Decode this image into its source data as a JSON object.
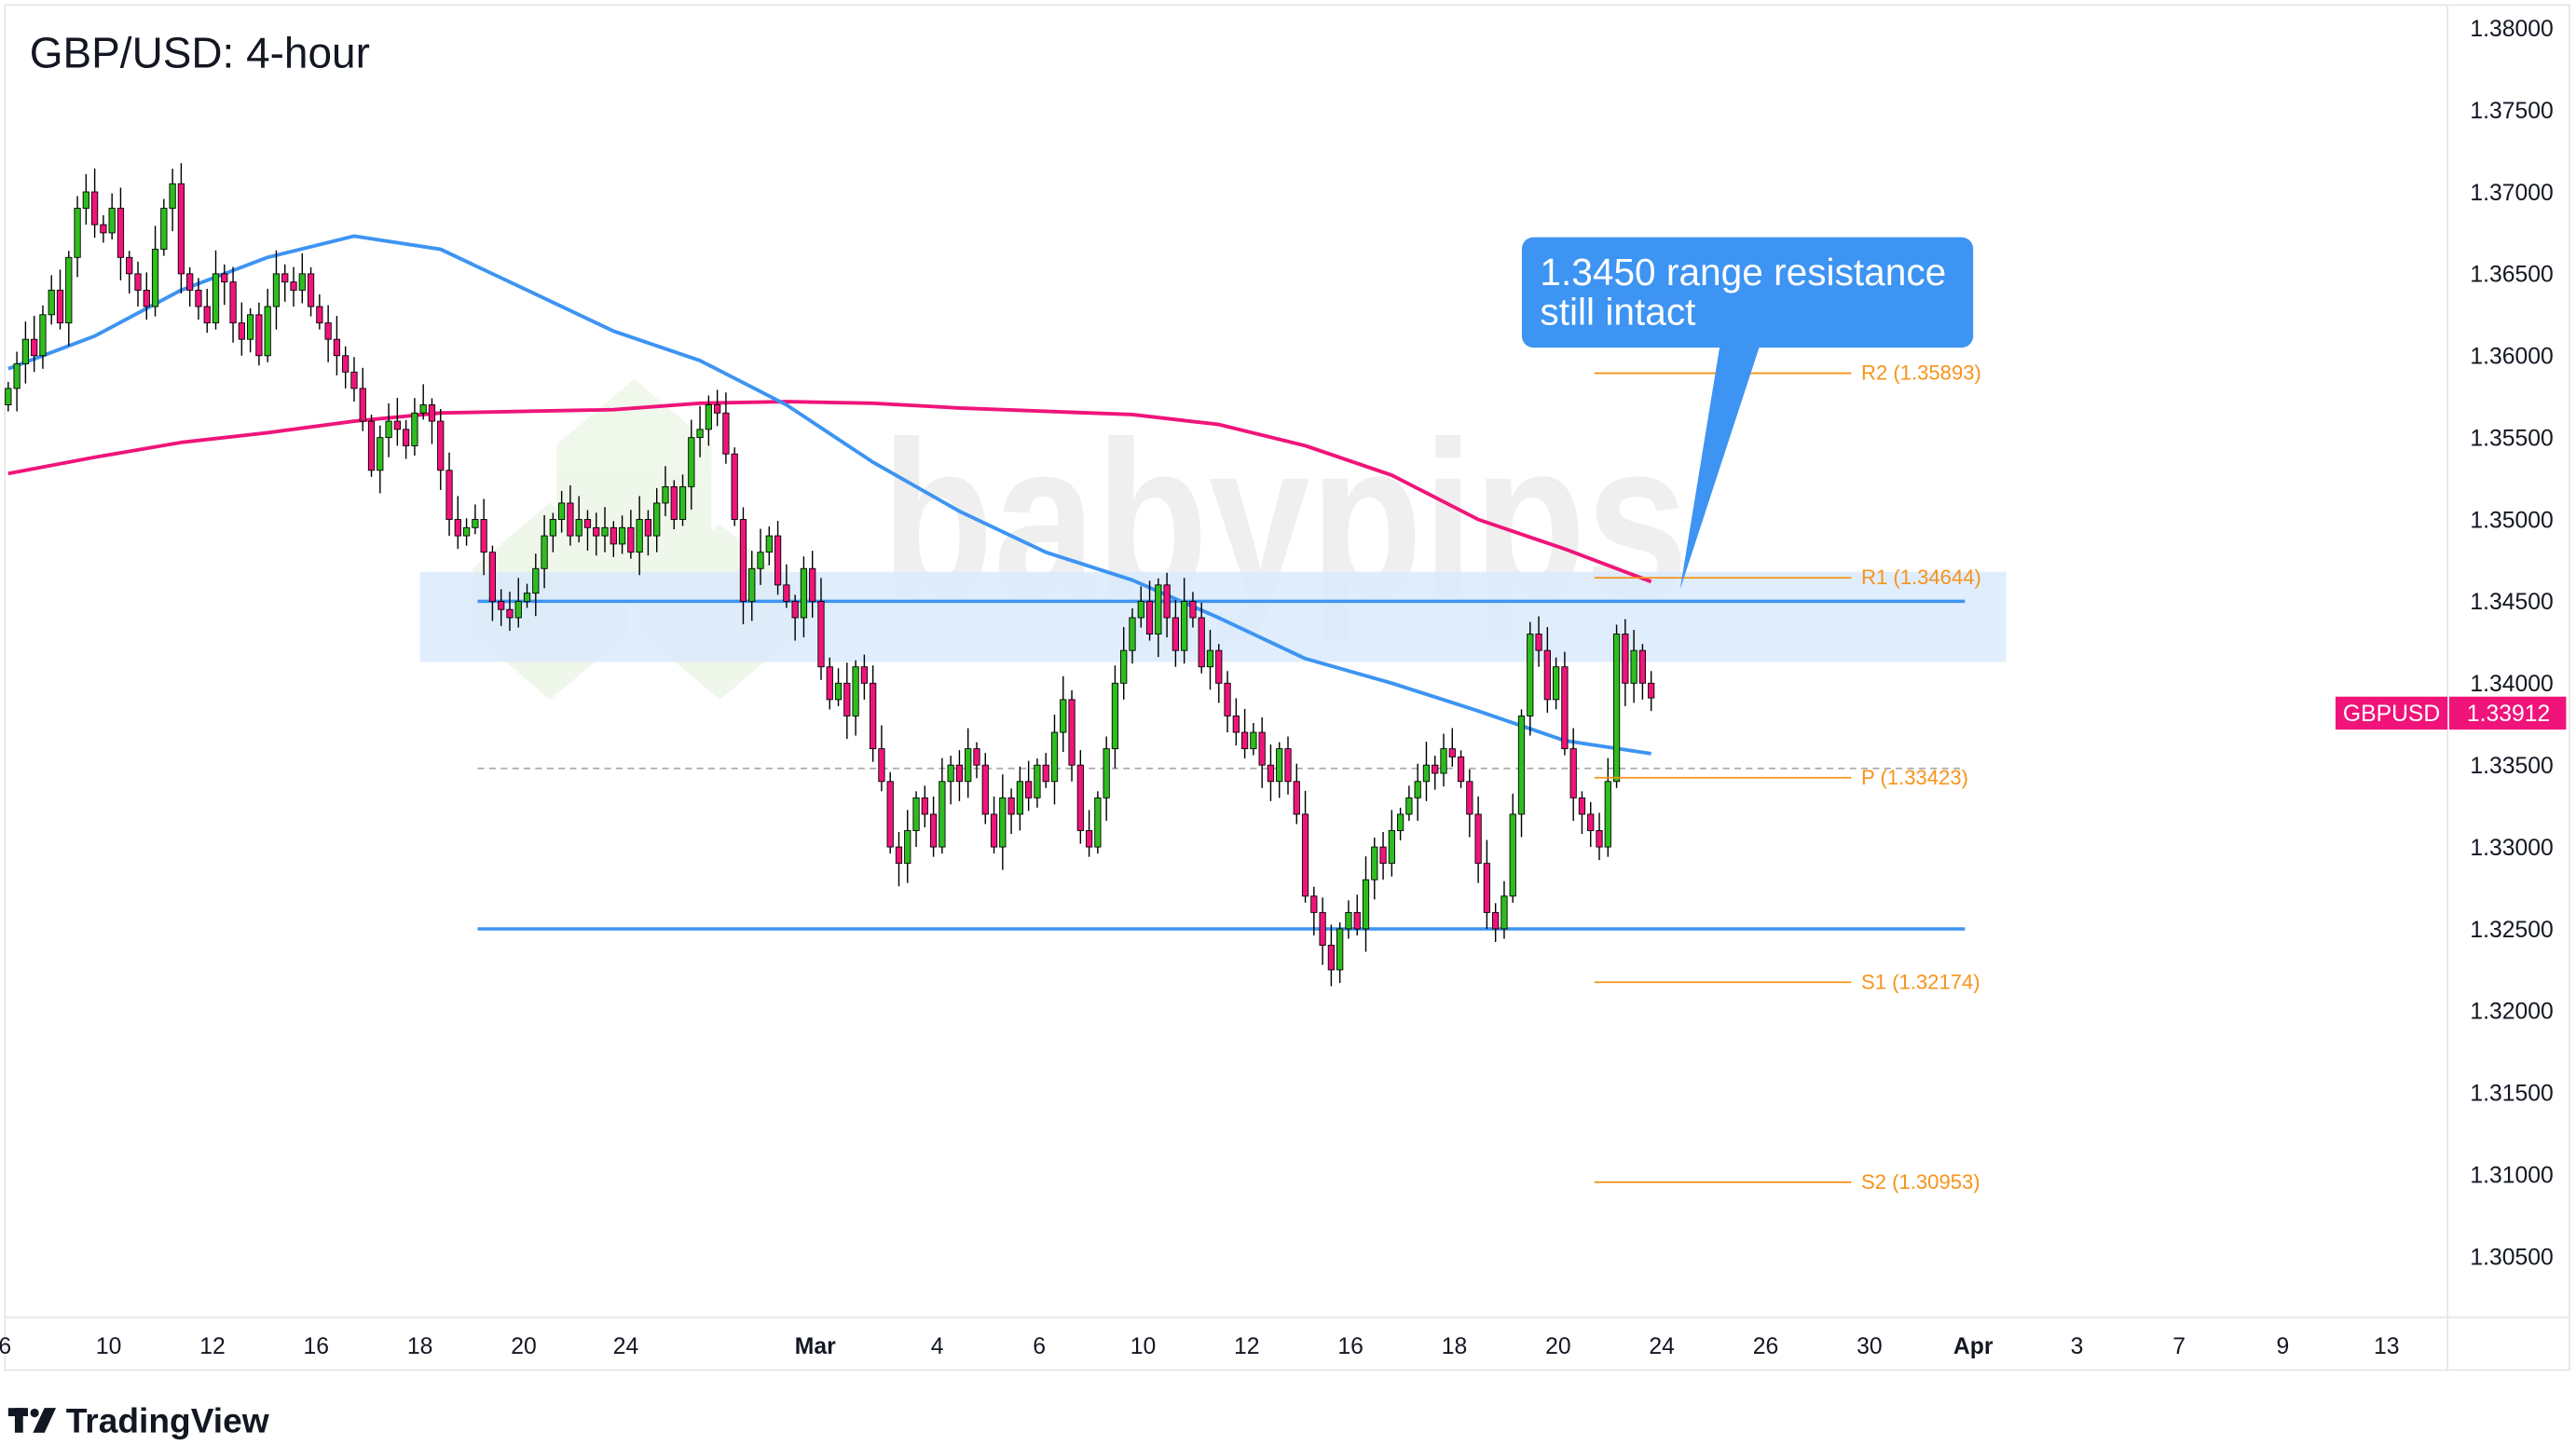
{
  "title": "GBP/USD: 4-hour",
  "brand": "TradingView",
  "watermark": "babypips",
  "colors": {
    "up": "#2ebd1e",
    "down": "#f0147a",
    "ma_fast": "#3d94f2",
    "ma_slow": "#f0147a",
    "pivot": "#f7931a",
    "zone": "#dbeafc",
    "callout": "#3d94f2"
  },
  "price_label": {
    "symbol": "GBPUSD",
    "value": "1.33912"
  },
  "annotation": {
    "line1": "1.3450 range resistance",
    "line2": "still intact"
  },
  "chart_data": {
    "type": "candlestick",
    "ylim": [
      1.3005,
      1.3815
    ],
    "y_ticks": [
      "1.38000",
      "1.37500",
      "1.37000",
      "1.36500",
      "1.36000",
      "1.35500",
      "1.35000",
      "1.34500",
      "1.34000",
      "1.33500",
      "1.33000",
      "1.32500",
      "1.32000",
      "1.31500",
      "1.31000",
      "1.30500"
    ],
    "x_ticks": [
      "6",
      "10",
      "12",
      "16",
      "18",
      "20",
      "24",
      "Mar",
      "4",
      "6",
      "10",
      "12",
      "16",
      "18",
      "20",
      "24",
      "26",
      "30",
      "Apr",
      "3",
      "7",
      "9",
      "13"
    ],
    "closes": [
      1.358,
      1.3595,
      1.361,
      1.36,
      1.3625,
      1.364,
      1.362,
      1.366,
      1.369,
      1.37,
      1.368,
      1.3675,
      1.369,
      1.366,
      1.365,
      1.364,
      1.363,
      1.3665,
      1.369,
      1.3705,
      1.365,
      1.364,
      1.363,
      1.362,
      1.365,
      1.3645,
      1.362,
      1.361,
      1.3625,
      1.36,
      1.363,
      1.365,
      1.3645,
      1.364,
      1.365,
      1.363,
      1.362,
      1.361,
      1.36,
      1.359,
      1.358,
      1.356,
      1.353,
      1.355,
      1.356,
      1.3555,
      1.3545,
      1.3565,
      1.357,
      1.356,
      1.353,
      1.35,
      1.349,
      1.3495,
      1.35,
      1.348,
      1.345,
      1.3445,
      1.344,
      1.345,
      1.3455,
      1.347,
      1.349,
      1.35,
      1.351,
      1.349,
      1.35,
      1.3495,
      1.349,
      1.3495,
      1.3485,
      1.3495,
      1.348,
      1.35,
      1.349,
      1.351,
      1.352,
      1.35,
      1.352,
      1.355,
      1.3555,
      1.357,
      1.3565,
      1.354,
      1.35,
      1.345,
      1.347,
      1.348,
      1.349,
      1.346,
      1.345,
      1.344,
      1.347,
      1.345,
      1.341,
      1.339,
      1.34,
      1.338,
      1.341,
      1.34,
      1.336,
      1.334,
      1.33,
      1.329,
      1.331,
      1.333,
      1.332,
      1.33,
      1.334,
      1.335,
      1.334,
      1.336,
      1.335,
      1.332,
      1.33,
      1.333,
      1.332,
      1.334,
      1.333,
      1.335,
      1.334,
      1.337,
      1.339,
      1.335,
      1.331,
      1.33,
      1.333,
      1.336,
      1.34,
      1.342,
      1.344,
      1.345,
      1.343,
      1.346,
      1.344,
      1.342,
      1.345,
      1.344,
      1.341,
      1.342,
      1.34,
      1.338,
      1.337,
      1.336,
      1.337,
      1.335,
      1.334,
      1.336,
      1.334,
      1.332,
      1.327,
      1.326,
      1.324,
      1.3225,
      1.325,
      1.326,
      1.325,
      1.328,
      1.33,
      1.329,
      1.331,
      1.332,
      1.333,
      1.334,
      1.335,
      1.3345,
      1.336,
      1.3355,
      1.334,
      1.332,
      1.329,
      1.326,
      1.325,
      1.327,
      1.332,
      1.338,
      1.343,
      1.342,
      1.339,
      1.341,
      1.336,
      1.333,
      1.332,
      1.331,
      1.33,
      1.334,
      1.343,
      1.34,
      1.342,
      1.34,
      1.3391
    ],
    "ma_fast_every10": [
      1.3592,
      1.3612,
      1.364,
      1.366,
      1.3673,
      1.3665,
      1.364,
      1.3615,
      1.3597,
      1.357,
      1.3535,
      1.3505,
      1.348,
      1.3463,
      1.344,
      1.3415,
      1.34,
      1.3383,
      1.3365,
      1.3357
    ],
    "ma_slow_every10": [
      1.3528,
      1.3538,
      1.3547,
      1.3553,
      1.356,
      1.3565,
      1.3566,
      1.3567,
      1.3571,
      1.3572,
      1.3571,
      1.3568,
      1.3566,
      1.3564,
      1.3558,
      1.3545,
      1.3527,
      1.35,
      1.3482,
      1.3462
    ],
    "range_zone": [
      1.3413,
      1.3468
    ],
    "resistance": 1.345,
    "support": 1.325,
    "dashed_level": 1.3348,
    "pivots": [
      {
        "label": "R2",
        "value": "1.35893"
      },
      {
        "label": "R1",
        "value": "1.34644"
      },
      {
        "label": "P",
        "value": "1.33423"
      },
      {
        "label": "S1",
        "value": "1.32174"
      },
      {
        "label": "S2",
        "value": "1.30953"
      }
    ],
    "last_price": 1.33912
  }
}
